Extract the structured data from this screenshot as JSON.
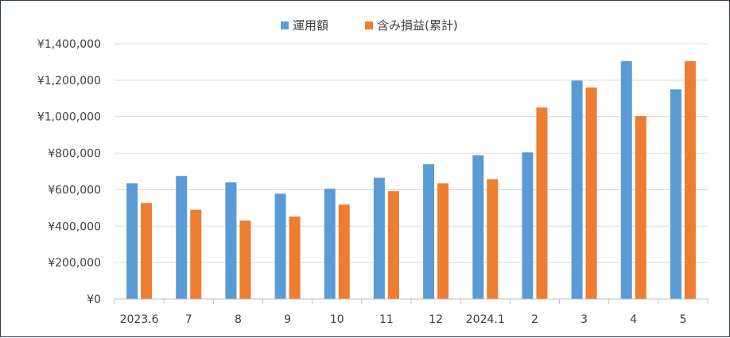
{
  "chart_data": {
    "type": "bar",
    "categories": [
      "2023.6",
      "7",
      "8",
      "9",
      "10",
      "11",
      "12",
      "2024.1",
      "2",
      "3",
      "4",
      "5"
    ],
    "series": [
      {
        "name": "運用額",
        "color": "#5b9bd5",
        "values": [
          635000,
          675000,
          640000,
          578000,
          605000,
          665000,
          740000,
          788000,
          805000,
          1198000,
          1305000,
          1150000
        ]
      },
      {
        "name": "含み損益(累計)",
        "color": "#ed7d31",
        "values": [
          527000,
          490000,
          430000,
          452000,
          518000,
          592000,
          635000,
          657000,
          1050000,
          1160000,
          1003000,
          1305000
        ]
      }
    ],
    "y_ticks": [
      "¥0",
      "¥200,000",
      "¥400,000",
      "¥600,000",
      "¥800,000",
      "¥1,000,000",
      "¥1,200,000",
      "¥1,400,000"
    ],
    "ylim": [
      0,
      1400000
    ],
    "grid": true,
    "legend_position": "top"
  }
}
